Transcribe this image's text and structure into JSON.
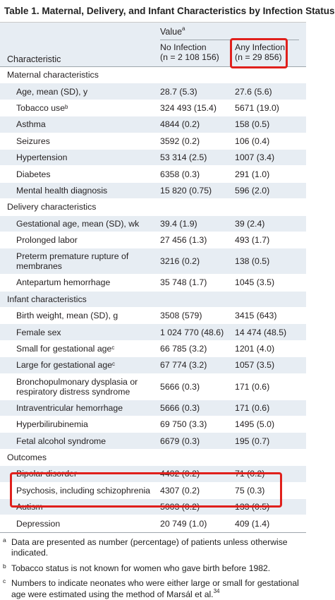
{
  "title": "Table 1. Maternal, Delivery, and Infant Characteristics by Infection Status",
  "header": {
    "value_label": "Value",
    "value_sup": "a",
    "characteristic_label": "Characteristic",
    "col1_line1": "No Infection",
    "col1_line2": "(n = 2 108 156)",
    "col2_line1": "Any Infection",
    "col2_line2": "(n = 29 856)"
  },
  "sections": [
    {
      "title": "Maternal characteristics",
      "rows": [
        {
          "label": "Age, mean (SD), y",
          "no_infection": "28.7 (5.3)",
          "any_infection": "27.6 (5.6)"
        },
        {
          "label": "Tobacco use",
          "sup": "b",
          "no_infection": "324 493 (15.4)",
          "any_infection": "5671 (19.0)"
        },
        {
          "label": "Asthma",
          "no_infection": "4844 (0.2)",
          "any_infection": "158 (0.5)"
        },
        {
          "label": "Seizures",
          "no_infection": "3592 (0.2)",
          "any_infection": "106 (0.4)"
        },
        {
          "label": "Hypertension",
          "no_infection": "53 314 (2.5)",
          "any_infection": "1007 (3.4)"
        },
        {
          "label": "Diabetes",
          "no_infection": "6358 (0.3)",
          "any_infection": "291 (1.0)"
        },
        {
          "label": "Mental health diagnosis",
          "no_infection": "15 820 (0.75)",
          "any_infection": "596 (2.0)"
        }
      ]
    },
    {
      "title": "Delivery characteristics",
      "rows": [
        {
          "label": "Gestational age, mean (SD), wk",
          "no_infection": "39.4 (1.9)",
          "any_infection": "39 (2.4)"
        },
        {
          "label": "Prolonged labor",
          "no_infection": "27 456 (1.3)",
          "any_infection": "493 (1.7)"
        },
        {
          "label": "Preterm premature rupture of membranes",
          "no_infection": "3216 (0.2)",
          "any_infection": "138 (0.5)"
        },
        {
          "label": "Antepartum hemorrhage",
          "no_infection": "35 748 (1.7)",
          "any_infection": "1045 (3.5)"
        }
      ]
    },
    {
      "title": "Infant characteristics",
      "rows": [
        {
          "label": "Birth weight, mean (SD), g",
          "no_infection": "3508 (579)",
          "any_infection": "3415 (643)"
        },
        {
          "label": "Female sex",
          "no_infection": "1 024 770 (48.6)",
          "any_infection": "14 474 (48.5)"
        },
        {
          "label": "Small for gestational age",
          "sup": "c",
          "no_infection": "66 785 (3.2)",
          "any_infection": "1201 (4.0)"
        },
        {
          "label": "Large for gestational age",
          "sup": "c",
          "no_infection": "67 774 (3.2)",
          "any_infection": "1057 (3.5)"
        },
        {
          "label": "Bronchopulmonary dysplasia or respiratory distress syndrome",
          "no_infection": "5666 (0.3)",
          "any_infection": "171 (0.6)"
        },
        {
          "label": "Intraventricular hemorrhage",
          "no_infection": "5666 (0.3)",
          "any_infection": "171 (0.6)"
        },
        {
          "label": "Hyperbilirubinemia",
          "no_infection": "69 750 (3.3)",
          "any_infection": "1495 (5.0)"
        },
        {
          "label": "Fetal alcohol syndrome",
          "no_infection": "6679 (0.3)",
          "any_infection": "195 (0.7)"
        }
      ]
    },
    {
      "title": "Outcomes",
      "rows": [
        {
          "label": "Bipolar disorder",
          "no_infection": "4402 (0.2)",
          "any_infection": "71 (0.2)"
        },
        {
          "label": "Psychosis, including schizophrenia",
          "no_infection": "4307 (0.2)",
          "any_infection": "75 (0.3)"
        },
        {
          "label": "Autism",
          "no_infection": "5003 (0.2)",
          "any_infection": "133 (0.5)"
        },
        {
          "label": "Depression",
          "no_infection": "20 749 (1.0)",
          "any_infection": "409 (1.4)"
        }
      ]
    }
  ],
  "footnotes": [
    {
      "mark": "a",
      "text": "Data are presented as number (percentage) of patients unless otherwise indicated."
    },
    {
      "mark": "b",
      "text": "Tobacco status is not known for women who gave birth before 1982."
    },
    {
      "mark": "c",
      "text": "Numbers to indicate neonates who were either large or small for gestational age were estimated using the method of Marsál et al.",
      "ref": "34"
    }
  ],
  "colors": {
    "header_shade": "#e7edf3",
    "highlight": "#e0201c"
  }
}
